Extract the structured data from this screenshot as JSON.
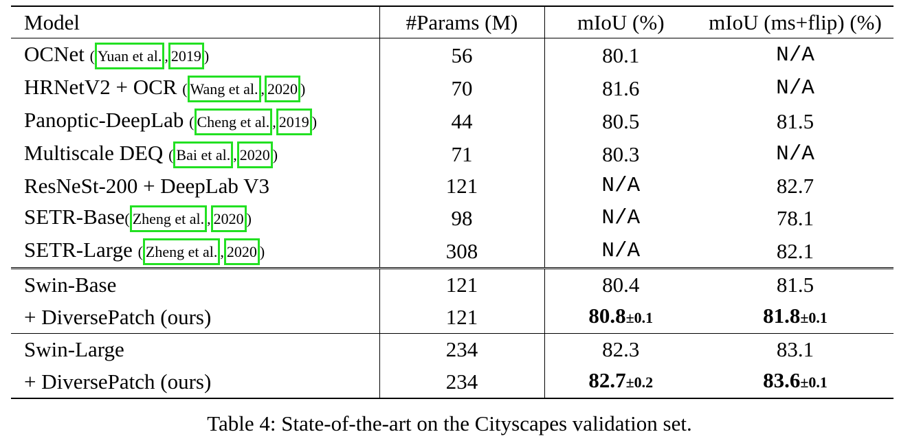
{
  "table": {
    "headers": [
      "Model",
      "#Params (M)",
      "mIoU (%)",
      "mIoU (ms+flip) (%)"
    ],
    "rows": [
      {
        "model": "OCNet",
        "cite_author": "Yuan et al.",
        "cite_year": "2019",
        "params": "56",
        "miou": "80.1",
        "miou_ms": "N/A"
      },
      {
        "model": "HRNetV2 + OCR",
        "cite_author": "Wang et al.",
        "cite_year": "2020",
        "params": "70",
        "miou": "81.6",
        "miou_ms": "N/A"
      },
      {
        "model": "Panoptic-DeepLab",
        "cite_author": "Cheng et al.",
        "cite_year": "2019",
        "params": "44",
        "miou": "80.5",
        "miou_ms": "81.5"
      },
      {
        "model": "Multiscale DEQ",
        "cite_author": "Bai et al.",
        "cite_year": "2020",
        "params": "71",
        "miou": "80.3",
        "miou_ms": "N/A"
      },
      {
        "model": "ResNeSt-200 + DeepLab V3",
        "params": "121",
        "miou": "N/A",
        "miou_ms": "82.7"
      },
      {
        "model": "SETR-Base",
        "cite_author": "Zheng et al.",
        "cite_year": "2020",
        "params": "98",
        "miou": "N/A",
        "miou_ms": "78.1"
      },
      {
        "model": "SETR-Large",
        "cite_author": "Zheng et al.",
        "cite_year": "2020",
        "params": "308",
        "miou": "N/A",
        "miou_ms": "82.1"
      },
      {
        "model": "Swin-Base",
        "params": "121",
        "miou": "80.4",
        "miou_ms": "81.5"
      },
      {
        "model": "+ DiversePatch (ours)",
        "params": "121",
        "miou": "80.8",
        "miou_pm": "±0.1",
        "miou_ms": "81.8",
        "miou_ms_pm": "±0.1"
      },
      {
        "model": "Swin-Large",
        "params": "234",
        "miou": "82.3",
        "miou_ms": "83.1"
      },
      {
        "model": "+ DiversePatch (ours)",
        "params": "234",
        "miou": "82.7",
        "miou_pm": "±0.2",
        "miou_ms": "83.6",
        "miou_ms_pm": "±0.1"
      }
    ]
  },
  "caption": "Table 4: State-of-the-art on the Cityscapes validation set.",
  "colors": {
    "citation_box": "#22e022"
  }
}
